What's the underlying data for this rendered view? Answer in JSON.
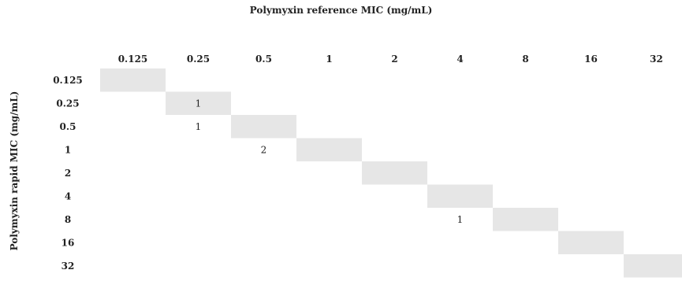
{
  "chart_data": {
    "type": "heatmap",
    "title": "Polymyxin reference MIC (mg/mL)",
    "ylabel": "Polymyxin rapid MIC (mg/mL)",
    "x_categories": [
      "0.125",
      "0.25",
      "0.5",
      "1",
      "2",
      "4",
      "8",
      "16",
      "32"
    ],
    "y_categories": [
      "0.125",
      "0.25",
      "0.5",
      "1",
      "2",
      "4",
      "8",
      "16",
      "32"
    ],
    "diagonal_shaded": true,
    "shade_color": "#e6e6e6",
    "cells": [
      {
        "row": "0.25",
        "col": "0.25",
        "value": 1
      },
      {
        "row": "0.5",
        "col": "0.25",
        "value": 1
      },
      {
        "row": "1",
        "col": "0.5",
        "value": 2
      },
      {
        "row": "8",
        "col": "4",
        "value": 1
      }
    ]
  }
}
